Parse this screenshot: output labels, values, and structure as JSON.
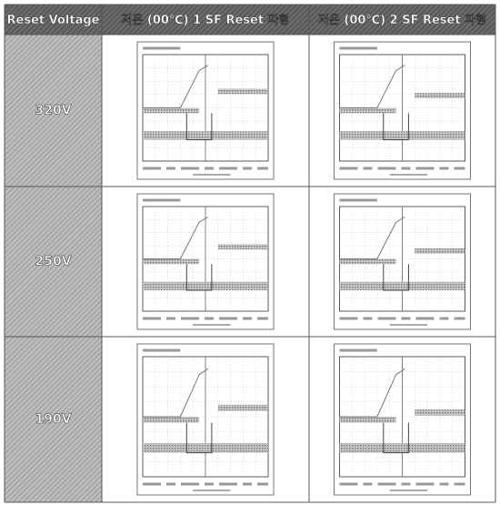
{
  "table": {
    "header": [
      "Reset Voltage",
      "저온 (00℃) 1 SF Reset 파형",
      "저온 (00℃) 2 SF Reset 파형"
    ],
    "rows": [
      "320V",
      "250V",
      "190V"
    ]
  }
}
